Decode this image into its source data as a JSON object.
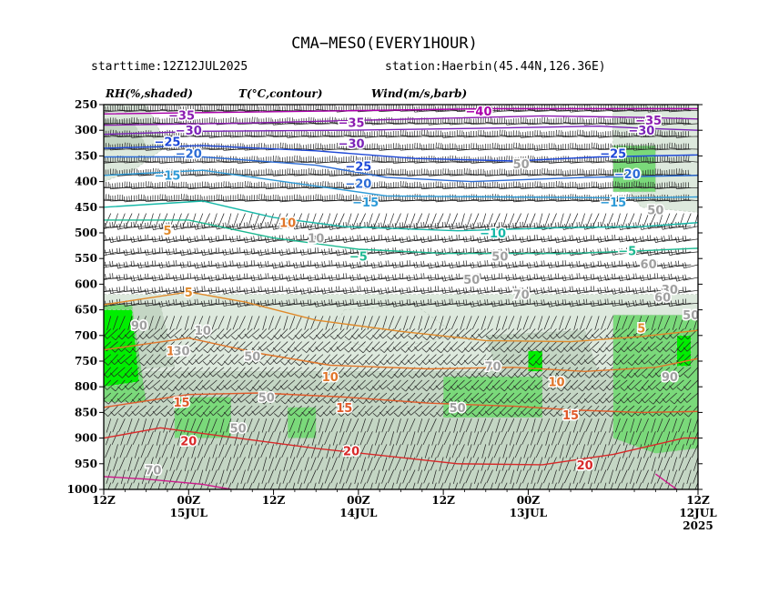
{
  "header": {
    "title": "CMA−MESO(EVERY1HOUR)",
    "starttime": "starttime:12Z12JUL2025",
    "station": "station:Haerbin(45.44N,126.36E)",
    "legend_rh": "RH(%,shaded)",
    "legend_t": "T(°C,contour)",
    "legend_wind": "Wind(m/s,barb)"
  },
  "colors": {
    "rh_50": "#dde9dd",
    "rh_70": "#c4d6c4",
    "rh_80": "#7ad97a",
    "rh_90": "#00ee00",
    "temp_neg40": "#aa00aa",
    "temp_neg35": "#8b1bb0",
    "temp_neg30": "#7a22b8",
    "temp_neg25": "#1e48d8",
    "temp_neg20": "#2c6cd6",
    "temp_neg15": "#2e9bd8",
    "temp_neg10": "#17b8a8",
    "temp_neg5": "#1cb890",
    "temp_5": "#e08a2a",
    "temp_10": "#e0762a",
    "temp_15": "#e05a2a",
    "temp_20": "#d82a2a",
    "temp_25": "#cc1a8a"
  },
  "chart_data": {
    "type": "time-height cross section (heatmap + contour + wind barbs)",
    "y_axis": {
      "unit": "hPa",
      "ticks": [
        "250",
        "300",
        "350",
        "400",
        "450",
        "500",
        "550",
        "600",
        "650",
        "700",
        "750",
        "800",
        "850",
        "900",
        "950",
        "1000"
      ],
      "reversed_pressure": true
    },
    "x_axis": {
      "direction": "time increases right-to-left",
      "ticks": [
        {
          "label": "12Z",
          "sub": "",
          "sub2": "",
          "hour": 84
        },
        {
          "label": "00Z",
          "sub": "15JUL",
          "sub2": "",
          "hour": 72
        },
        {
          "label": "12Z",
          "sub": "",
          "sub2": "",
          "hour": 60
        },
        {
          "label": "00Z",
          "sub": "14JUL",
          "sub2": "",
          "hour": 48
        },
        {
          "label": "12Z",
          "sub": "",
          "sub2": "",
          "hour": 36
        },
        {
          "label": "00Z",
          "sub": "13JUL",
          "sub2": "",
          "hour": 24
        },
        {
          "label": "12Z",
          "sub": "12JUL",
          "sub2": "2025",
          "hour": 0
        }
      ],
      "range_hours": [
        84,
        0
      ]
    },
    "rh_shading_levels": [
      50,
      70,
      80,
      90
    ],
    "rh_regions": [
      {
        "level": 50,
        "poly": [
          [
            84,
            620
          ],
          [
            0,
            620
          ],
          [
            0,
            1000
          ],
          [
            84,
            1000
          ]
        ]
      },
      {
        "level": 50,
        "poly": [
          [
            84,
            250
          ],
          [
            78,
            250
          ],
          [
            75,
            330
          ],
          [
            80,
            380
          ],
          [
            84,
            400
          ]
        ]
      },
      {
        "level": 50,
        "poly": [
          [
            12,
            250
          ],
          [
            0,
            250
          ],
          [
            0,
            460
          ],
          [
            8,
            450
          ],
          [
            12,
            380
          ]
        ]
      },
      {
        "level": 50,
        "poly": [
          [
            50,
            650
          ],
          [
            40,
            640
          ],
          [
            34,
            700
          ],
          [
            45,
            730
          ],
          [
            52,
            700
          ]
        ]
      },
      {
        "level": 70,
        "poly": [
          [
            84,
            770
          ],
          [
            0,
            770
          ],
          [
            0,
            1000
          ],
          [
            84,
            1000
          ]
        ]
      },
      {
        "level": 70,
        "poly": [
          [
            84,
            640
          ],
          [
            76,
            640
          ],
          [
            74,
            760
          ],
          [
            84,
            770
          ]
        ]
      },
      {
        "level": 70,
        "poly": [
          [
            30,
            700
          ],
          [
            16,
            690
          ],
          [
            14,
            780
          ],
          [
            28,
            790
          ]
        ]
      },
      {
        "level": 70,
        "poly": [
          [
            84,
            280
          ],
          [
            80,
            280
          ],
          [
            78,
            330
          ],
          [
            84,
            340
          ]
        ]
      },
      {
        "level": 80,
        "poly": [
          [
            84,
            640
          ],
          [
            80,
            640
          ],
          [
            78,
            830
          ],
          [
            84,
            830
          ]
        ]
      },
      {
        "level": 80,
        "poly": [
          [
            74,
            820
          ],
          [
            66,
            820
          ],
          [
            66,
            900
          ],
          [
            74,
            900
          ]
        ]
      },
      {
        "level": 80,
        "poly": [
          [
            58,
            840
          ],
          [
            54,
            840
          ],
          [
            54,
            900
          ],
          [
            58,
            900
          ]
        ]
      },
      {
        "level": 80,
        "poly": [
          [
            36,
            780
          ],
          [
            22,
            780
          ],
          [
            22,
            860
          ],
          [
            36,
            860
          ]
        ]
      },
      {
        "level": 80,
        "poly": [
          [
            12,
            660
          ],
          [
            0,
            660
          ],
          [
            0,
            920
          ],
          [
            6,
            930
          ],
          [
            12,
            900
          ]
        ]
      },
      {
        "level": 80,
        "poly": [
          [
            12,
            330
          ],
          [
            6,
            330
          ],
          [
            6,
            420
          ],
          [
            12,
            420
          ]
        ]
      },
      {
        "level": 90,
        "poly": [
          [
            84,
            650
          ],
          [
            80,
            650
          ],
          [
            79,
            790
          ],
          [
            84,
            800
          ]
        ]
      },
      {
        "level": 90,
        "poly": [
          [
            24,
            730
          ],
          [
            22,
            730
          ],
          [
            22,
            770
          ],
          [
            24,
            770
          ]
        ]
      },
      {
        "level": 90,
        "poly": [
          [
            3,
            700
          ],
          [
            1,
            700
          ],
          [
            1,
            760
          ],
          [
            3,
            760
          ]
        ]
      }
    ],
    "temperature_contours_degC": [
      {
        "value": -40,
        "points": [
          [
            84,
            268
          ],
          [
            50,
            262
          ],
          [
            30,
            258
          ],
          [
            0,
            258
          ]
        ]
      },
      {
        "value": -35,
        "points": [
          [
            84,
            290
          ],
          [
            64,
            286
          ],
          [
            40,
            278
          ],
          [
            22,
            272
          ],
          [
            8,
            275
          ],
          [
            0,
            278
          ]
        ]
      },
      {
        "value": -30,
        "points": [
          [
            84,
            308
          ],
          [
            70,
            302
          ],
          [
            50,
            300
          ],
          [
            30,
            296
          ],
          [
            14,
            292
          ],
          [
            8,
            296
          ],
          [
            0,
            300
          ]
        ]
      },
      {
        "value": -25,
        "points": [
          [
            84,
            335
          ],
          [
            70,
            330
          ],
          [
            54,
            340
          ],
          [
            40,
            355
          ],
          [
            26,
            360
          ],
          [
            14,
            352
          ],
          [
            0,
            348
          ]
        ]
      },
      {
        "value": -20,
        "points": [
          [
            84,
            352
          ],
          [
            70,
            352
          ],
          [
            54,
            368
          ],
          [
            44,
            392
          ],
          [
            32,
            400
          ],
          [
            16,
            392
          ],
          [
            0,
            388
          ]
        ]
      },
      {
        "value": -15,
        "points": [
          [
            84,
            388
          ],
          [
            70,
            378
          ],
          [
            56,
            405
          ],
          [
            44,
            428
          ],
          [
            28,
            430
          ],
          [
            10,
            432
          ],
          [
            0,
            430
          ]
        ]
      },
      {
        "value": -10,
        "points": [
          [
            84,
            450
          ],
          [
            70,
            438
          ],
          [
            60,
            470
          ],
          [
            50,
            488
          ],
          [
            34,
            496
          ],
          [
            20,
            490
          ],
          [
            8,
            488
          ],
          [
            0,
            480
          ]
        ]
      },
      {
        "value": -5,
        "points": [
          [
            84,
            475
          ],
          [
            72,
            475
          ],
          [
            60,
            510
          ],
          [
            48,
            532
          ],
          [
            36,
            540
          ],
          [
            18,
            540
          ],
          [
            8,
            535
          ],
          [
            0,
            530
          ]
        ]
      },
      {
        "value": 5,
        "points": [
          [
            84,
            640
          ],
          [
            72,
            615
          ],
          [
            64,
            635
          ],
          [
            54,
            670
          ],
          [
            42,
            692
          ],
          [
            30,
            710
          ],
          [
            18,
            712
          ],
          [
            8,
            702
          ],
          [
            0,
            690
          ]
        ]
      },
      {
        "value": 10,
        "points": [
          [
            84,
            728
          ],
          [
            72,
            705
          ],
          [
            62,
            735
          ],
          [
            52,
            758
          ],
          [
            38,
            765
          ],
          [
            26,
            762
          ],
          [
            16,
            770
          ],
          [
            6,
            762
          ],
          [
            0,
            745
          ]
        ]
      },
      {
        "value": 15,
        "points": [
          [
            84,
            840
          ],
          [
            72,
            815
          ],
          [
            62,
            812
          ],
          [
            50,
            820
          ],
          [
            38,
            832
          ],
          [
            26,
            838
          ],
          [
            18,
            845
          ],
          [
            8,
            850
          ],
          [
            0,
            848
          ]
        ]
      },
      {
        "value": 20,
        "points": [
          [
            84,
            900
          ],
          [
            76,
            880
          ],
          [
            64,
            902
          ],
          [
            54,
            920
          ],
          [
            44,
            935
          ],
          [
            34,
            950
          ],
          [
            22,
            952
          ],
          [
            12,
            932
          ],
          [
            2,
            900
          ],
          [
            0,
            900
          ]
        ]
      },
      {
        "value": 25,
        "points": [
          [
            84,
            975
          ],
          [
            78,
            980
          ],
          [
            70,
            990
          ],
          [
            66,
            1000
          ]
        ]
      },
      {
        "value": 25,
        "points": [
          [
            6,
            970
          ],
          [
            4,
            990
          ],
          [
            3,
            1000
          ]
        ]
      }
    ],
    "contour_labels": [
      {
        "text": "−35",
        "hour": 73,
        "p": 270
      },
      {
        "text": "−30",
        "hour": 72,
        "p": 300
      },
      {
        "text": "−25",
        "hour": 75,
        "p": 322
      },
      {
        "text": "−20",
        "hour": 72,
        "p": 345
      },
      {
        "text": "−15",
        "hour": 75,
        "p": 387
      },
      {
        "text": "5",
        "hour": 75,
        "p": 495
      },
      {
        "text": "5",
        "hour": 72,
        "p": 615
      },
      {
        "text": "10",
        "hour": 74,
        "p": 730
      },
      {
        "text": "15",
        "hour": 73,
        "p": 830
      },
      {
        "text": "20",
        "hour": 72,
        "p": 905
      },
      {
        "text": "−40",
        "hour": 31,
        "p": 262
      },
      {
        "text": "−35",
        "hour": 49,
        "p": 285
      },
      {
        "text": "−30",
        "hour": 49,
        "p": 325
      },
      {
        "text": "−25",
        "hour": 48,
        "p": 370
      },
      {
        "text": "−20",
        "hour": 48,
        "p": 403
      },
      {
        "text": "−15",
        "hour": 47,
        "p": 440
      },
      {
        "text": "10",
        "hour": 58,
        "p": 480
      },
      {
        "text": "−10",
        "hour": 29,
        "p": 500
      },
      {
        "text": "−5",
        "hour": 48,
        "p": 545
      },
      {
        "text": "10",
        "hour": 52,
        "p": 780
      },
      {
        "text": "15",
        "hour": 50,
        "p": 840
      },
      {
        "text": "20",
        "hour": 49,
        "p": 925
      },
      {
        "text": "10",
        "hour": 20,
        "p": 790
      },
      {
        "text": "15",
        "hour": 18,
        "p": 855
      },
      {
        "text": "20",
        "hour": 16,
        "p": 952
      },
      {
        "text": "−35",
        "hour": 7,
        "p": 280
      },
      {
        "text": "−30",
        "hour": 8,
        "p": 300
      },
      {
        "text": "−25",
        "hour": 12,
        "p": 345
      },
      {
        "text": "−20",
        "hour": 10,
        "p": 385
      },
      {
        "text": "−15",
        "hour": 12,
        "p": 440
      },
      {
        "text": "−5",
        "hour": 10,
        "p": 535
      },
      {
        "text": "5",
        "hour": 8,
        "p": 685
      }
    ],
    "rh_labels": [
      {
        "text": "90",
        "hour": 79,
        "p": 680
      },
      {
        "text": "10",
        "hour": 70,
        "p": 690
      },
      {
        "text": "30",
        "hour": 73,
        "p": 730
      },
      {
        "text": "50",
        "hour": 63,
        "p": 740
      },
      {
        "text": "50",
        "hour": 61,
        "p": 820
      },
      {
        "text": "50",
        "hour": 65,
        "p": 880
      },
      {
        "text": "70",
        "hour": 77,
        "p": 962
      },
      {
        "text": "10",
        "hour": 54,
        "p": 510
      },
      {
        "text": "50",
        "hour": 34,
        "p": 840
      },
      {
        "text": "50",
        "hour": 32,
        "p": 590
      },
      {
        "text": "50",
        "hour": 28,
        "p": 545
      },
      {
        "text": "70",
        "hour": 25,
        "p": 620
      },
      {
        "text": "70",
        "hour": 29,
        "p": 760
      },
      {
        "text": "50",
        "hour": 25,
        "p": 365
      },
      {
        "text": "50",
        "hour": 6,
        "p": 455
      },
      {
        "text": "60",
        "hour": 7,
        "p": 560
      },
      {
        "text": "30",
        "hour": 4,
        "p": 610
      },
      {
        "text": "60",
        "hour": 5,
        "p": 625
      },
      {
        "text": "90",
        "hour": 4,
        "p": 780
      },
      {
        "text": "50",
        "hour": 1,
        "p": 660
      }
    ],
    "wind_barbs": {
      "representation": "barbs at every hour and 25 hPa",
      "speed_ms": [
        {
          "p_min": 250,
          "p_max": 450,
          "speed": 35,
          "dir_deg": 270
        },
        {
          "p_min": 475,
          "p_max": 650,
          "speed": 22,
          "dir_deg": 260
        },
        {
          "p_min": 675,
          "p_max": 850,
          "speed": 12,
          "dir_deg": 225
        },
        {
          "p_min": 875,
          "p_max": 1000,
          "speed": 6,
          "dir_deg": 200
        }
      ]
    }
  }
}
